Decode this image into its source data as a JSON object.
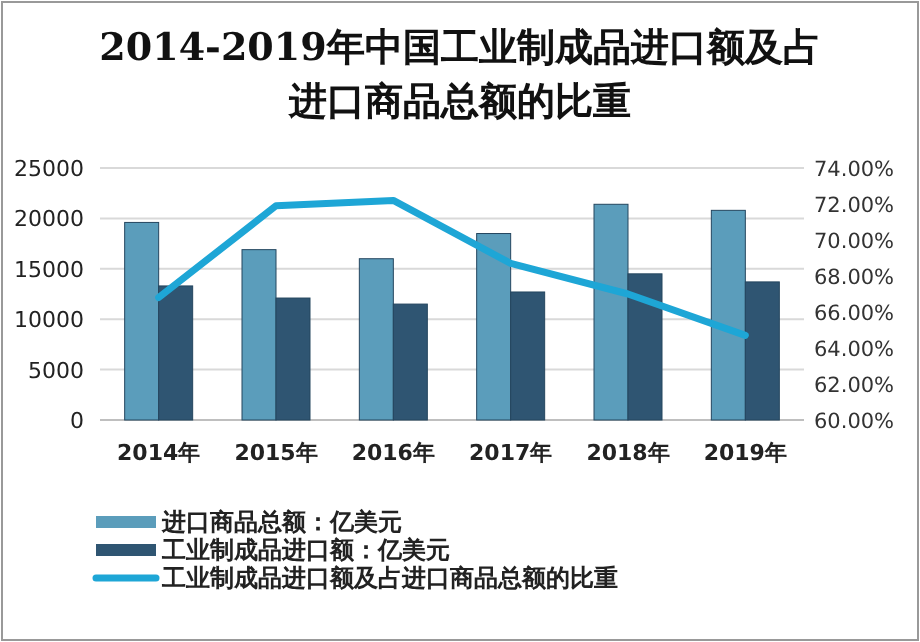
{
  "chart_data": {
    "type": "bar",
    "title": "2014-2019年中国工业制成品进口额及占进口商品总额的比重",
    "categories": [
      "2014年",
      "2015年",
      "2016年",
      "2017年",
      "2018年",
      "2019年"
    ],
    "series": [
      {
        "name": "进口商品总额：亿美元",
        "color": "#5b9dbb",
        "values": [
          19600,
          16900,
          16000,
          18500,
          21400,
          20800
        ]
      },
      {
        "name": "工业制成品进口额：亿美元",
        "color": "#2f5572",
        "values": [
          13300,
          12100,
          11500,
          12700,
          14500,
          13700
        ]
      },
      {
        "name": "工业制成品进口额及占进口商品总额的比重",
        "type": "line",
        "axis": "y2",
        "color": "#1ea6d6",
        "values": [
          66.8,
          71.9,
          72.2,
          68.7,
          67.0,
          64.7
        ]
      }
    ],
    "ylim": [
      0,
      25000
    ],
    "yticks": [
      0,
      5000,
      10000,
      15000,
      20000,
      25000
    ],
    "y2lim": [
      60,
      74
    ],
    "y2ticks": [
      {
        "value": 60,
        "label": "60.00%"
      },
      {
        "value": 62,
        "label": "62.00%"
      },
      {
        "value": 64,
        "label": "64.00%"
      },
      {
        "value": 66,
        "label": "66.00%"
      },
      {
        "value": 68,
        "label": "68.00%"
      },
      {
        "value": 70,
        "label": "70.00%"
      },
      {
        "value": 72,
        "label": "72.00%"
      },
      {
        "value": 74,
        "label": "74.00%"
      }
    ],
    "grid": "y",
    "legend": "bottom",
    "marker": "none",
    "line_style": "solid"
  }
}
